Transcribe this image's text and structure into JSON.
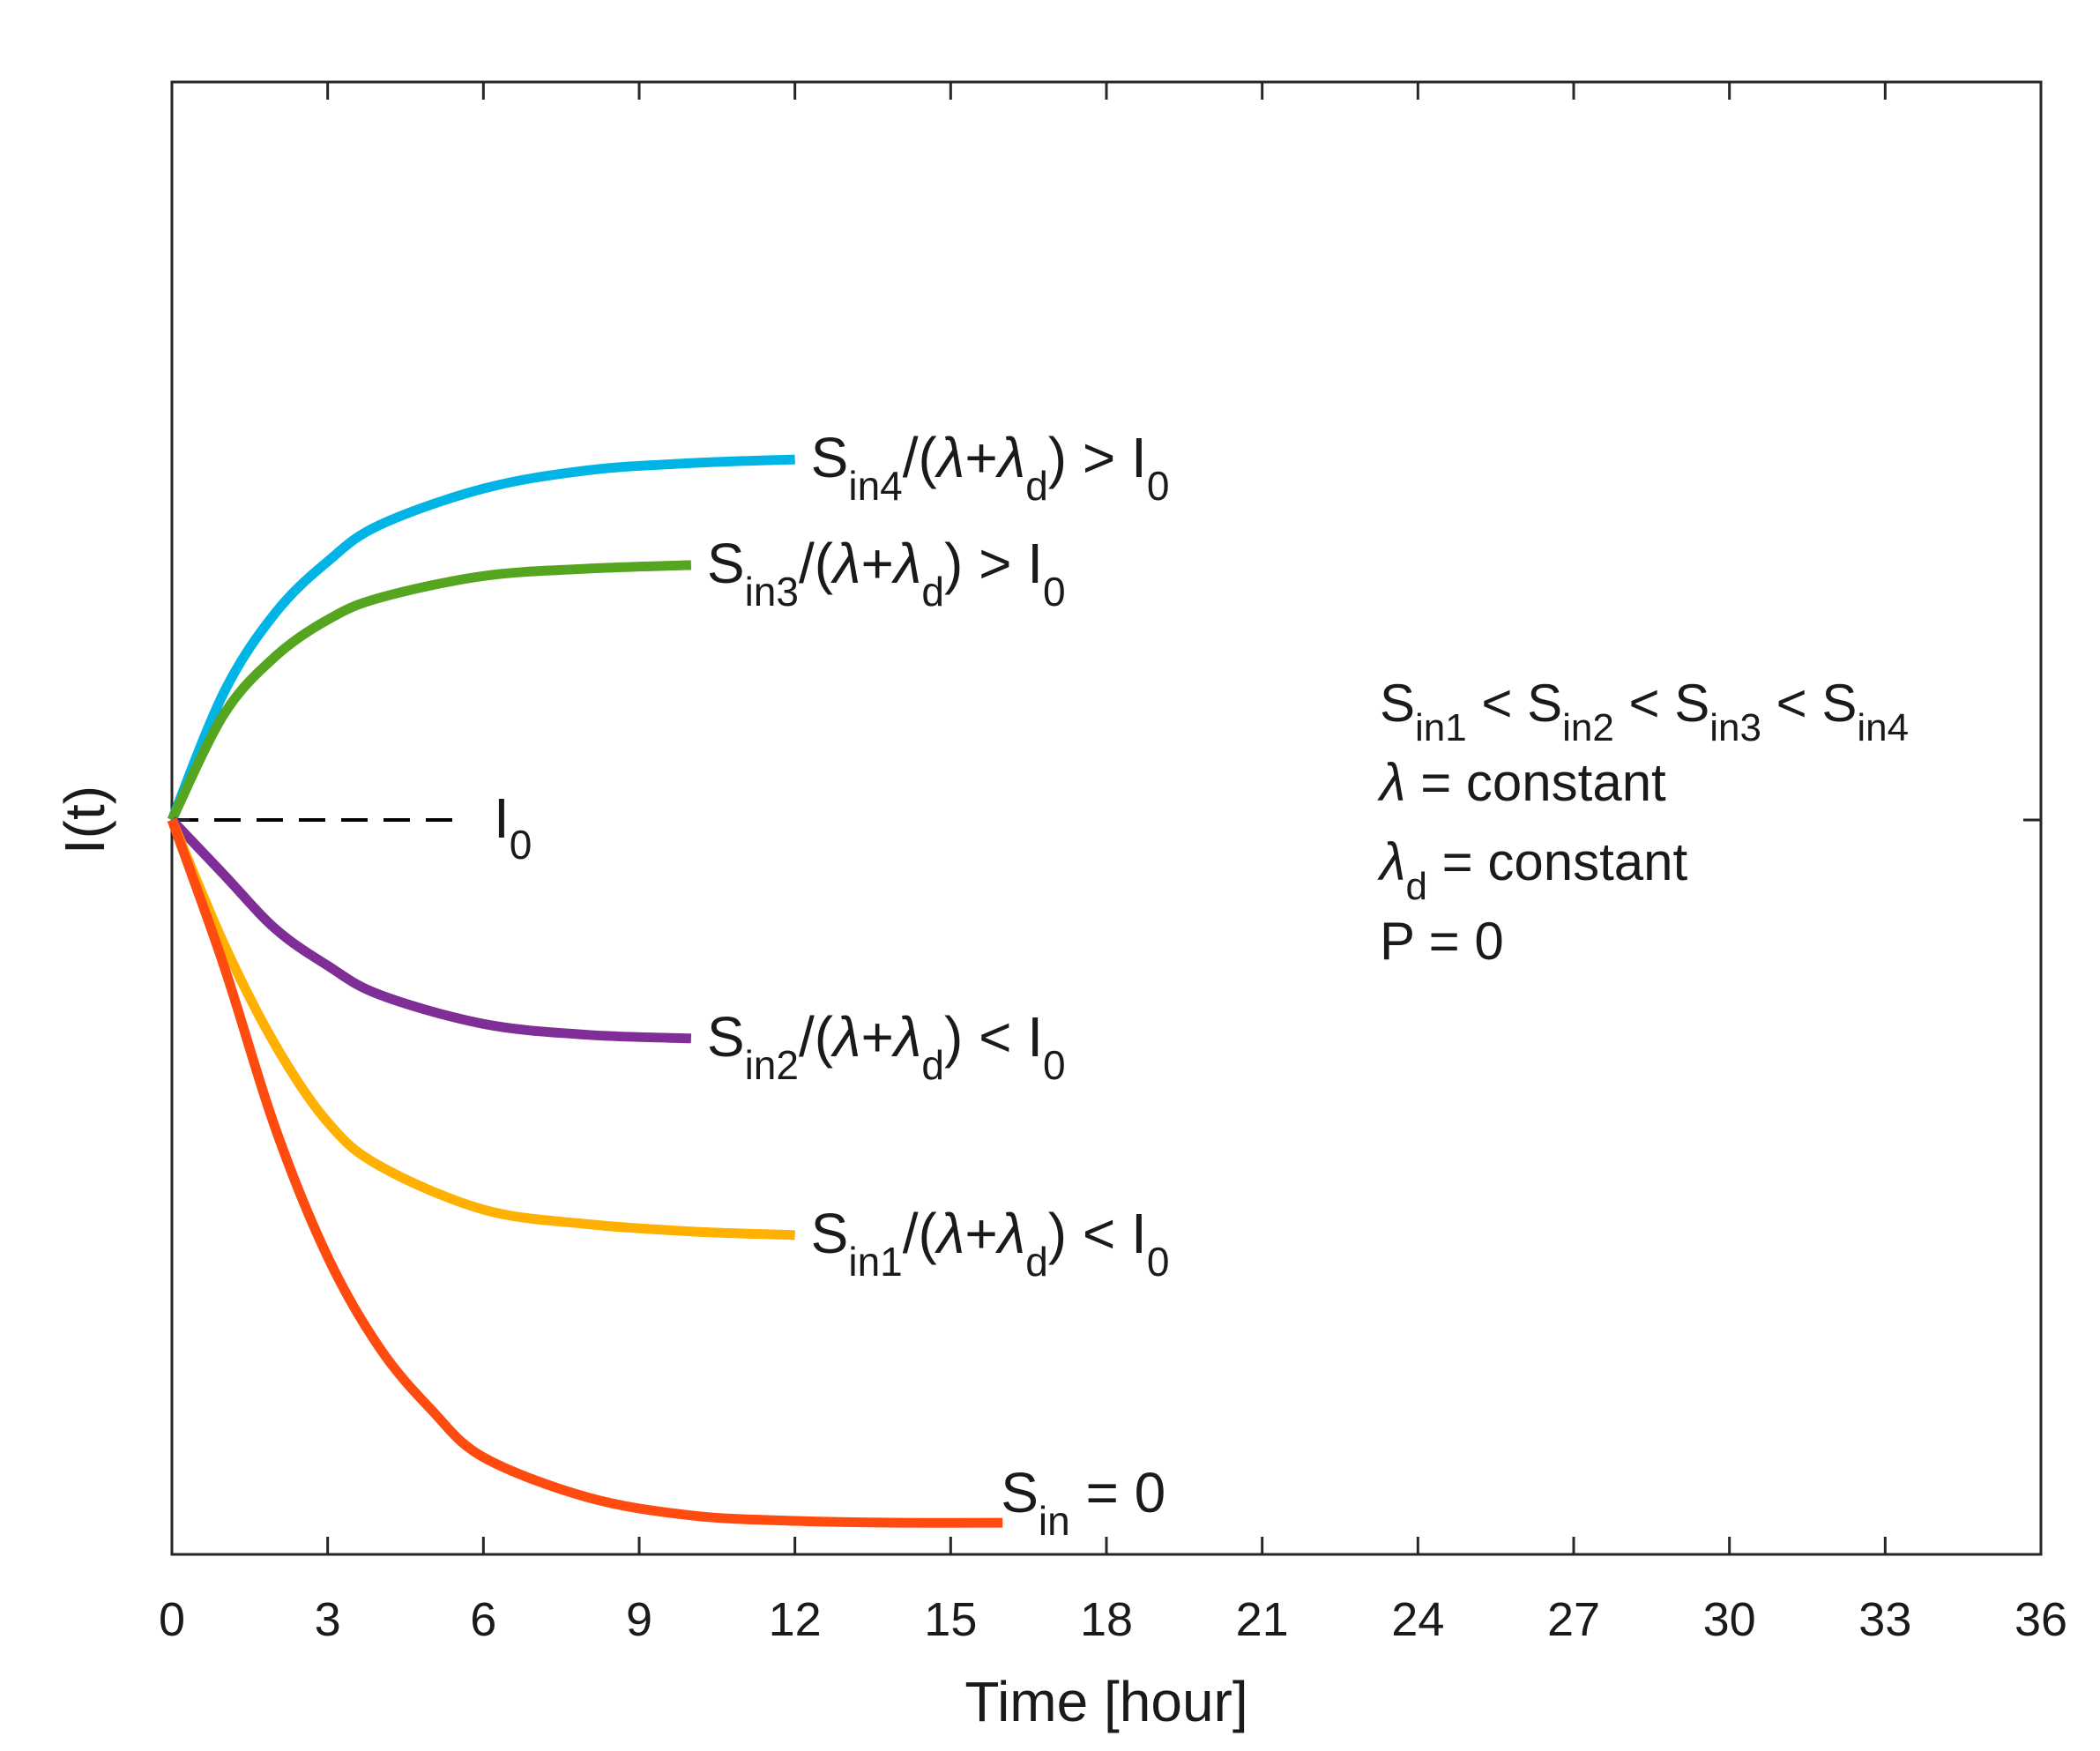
{
  "chart_data": {
    "type": "line",
    "title": "",
    "xlabel": "Time [hour]",
    "ylabel": "I(t)",
    "xlim": [
      0,
      36
    ],
    "x_ticks": [
      "0",
      "3",
      "6",
      "9",
      "12",
      "15",
      "18",
      "21",
      "24",
      "27",
      "30",
      "33",
      "36"
    ],
    "y_ticks": [],
    "grid": false,
    "y_reference_label": "I",
    "y_reference_sub": "0",
    "series": [
      {
        "color": "#00b4e6",
        "x": [
          0,
          1,
          2,
          3,
          4,
          6,
          8,
          10,
          12
        ],
        "y": [
          0,
          0.35,
          0.57,
          0.71,
          0.81,
          0.91,
          0.96,
          0.98,
          0.99
        ],
        "label_parts": [
          "S",
          "in4",
          "/(",
          "λ",
          "+",
          "λ",
          "d",
          ") > I",
          "0"
        ]
      },
      {
        "color": "#55a520",
        "x": [
          0,
          1,
          2,
          3,
          4,
          6,
          8,
          10
        ],
        "y": [
          0,
          0.29,
          0.45,
          0.55,
          0.61,
          0.67,
          0.69,
          0.7
        ],
        "label_parts": [
          "S",
          "in3",
          "/(",
          "λ",
          "+",
          "λ",
          "d",
          ") > I",
          "0"
        ]
      },
      {
        "color": "#7e2e96",
        "x": [
          0,
          1,
          2,
          3,
          4,
          6,
          8,
          10
        ],
        "y": [
          0,
          -0.15,
          -0.3,
          -0.4,
          -0.48,
          -0.56,
          -0.59,
          -0.6
        ],
        "label_parts": [
          "S",
          "in2",
          "/(",
          "λ",
          "+",
          "λ",
          "d",
          ") < I",
          "0"
        ]
      },
      {
        "color": "#ffb000",
        "x": [
          0,
          1,
          2,
          3,
          4,
          6,
          8,
          10,
          12
        ],
        "y": [
          0,
          -0.34,
          -0.62,
          -0.83,
          -0.95,
          -1.07,
          -1.11,
          -1.13,
          -1.14
        ],
        "label_parts": [
          "S",
          "in1",
          "/(",
          "λ",
          "+",
          "λ",
          "d",
          ") < I",
          "0"
        ]
      },
      {
        "color": "#ff4a10",
        "x": [
          0,
          1,
          2,
          3,
          4,
          5,
          6,
          8,
          10,
          12,
          14,
          16
        ],
        "y": [
          0,
          -0.4,
          -0.85,
          -1.2,
          -1.45,
          -1.62,
          -1.75,
          -1.86,
          -1.91,
          -1.925,
          -1.93,
          -1.93
        ],
        "label_parts": [
          "S",
          "in",
          " = 0"
        ]
      }
    ],
    "annotation": {
      "line1": [
        "S",
        "in1",
        " < S",
        "in2",
        " < S",
        "in3",
        " < S",
        "in4"
      ],
      "line2": [
        "λ",
        " = constant"
      ],
      "line3": [
        "λ",
        "d",
        " = constant"
      ],
      "line4": "P = 0"
    },
    "colors": {
      "axis": "#262626"
    }
  }
}
